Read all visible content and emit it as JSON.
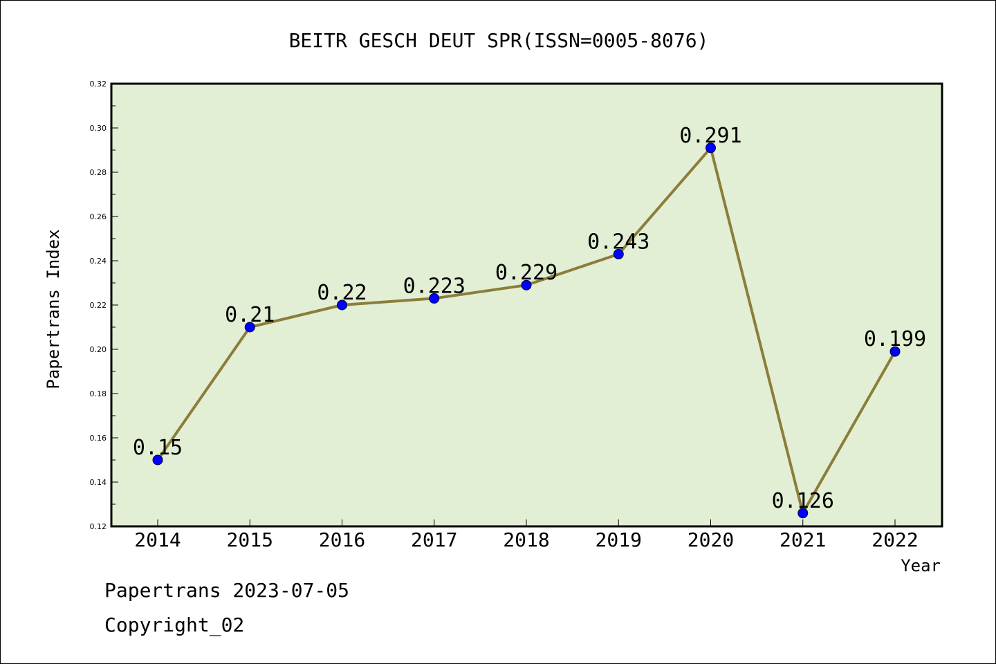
{
  "chart_data": {
    "type": "line",
    "title": "BEITR GESCH DEUT SPR(ISSN=0005-8076)",
    "xlabel": "Year",
    "ylabel": "Papertrans Index",
    "categories": [
      "2014",
      "2015",
      "2016",
      "2017",
      "2018",
      "2019",
      "2020",
      "2021",
      "2022"
    ],
    "series": [
      {
        "values": [
          0.15,
          0.21,
          0.22,
          0.223,
          0.229,
          0.243,
          0.291,
          0.126,
          0.199
        ],
        "labels": [
          "0.15",
          "0.21",
          "0.22",
          "0.223",
          "0.229",
          "0.243",
          "0.291",
          "0.126",
          "0.199"
        ]
      }
    ],
    "ylim": [
      0.12,
      0.32
    ],
    "yticks": [
      0.12,
      0.14,
      0.16,
      0.18,
      0.2,
      0.22,
      0.24,
      0.26,
      0.28,
      0.3,
      0.32
    ],
    "ytick_labels": [
      "0.12",
      "0.14",
      "0.16",
      "0.18",
      "0.20",
      "0.22",
      "0.24",
      "0.26",
      "0.28",
      "0.30",
      "0.32"
    ],
    "grid": false,
    "colors": {
      "plot_background": "#e2efd4",
      "line": "#8b7d3a",
      "marker": "#0000ff"
    }
  },
  "footer": {
    "date_text": "Papertrans 2023-07-05",
    "copyright_text": "Copyright_02"
  }
}
